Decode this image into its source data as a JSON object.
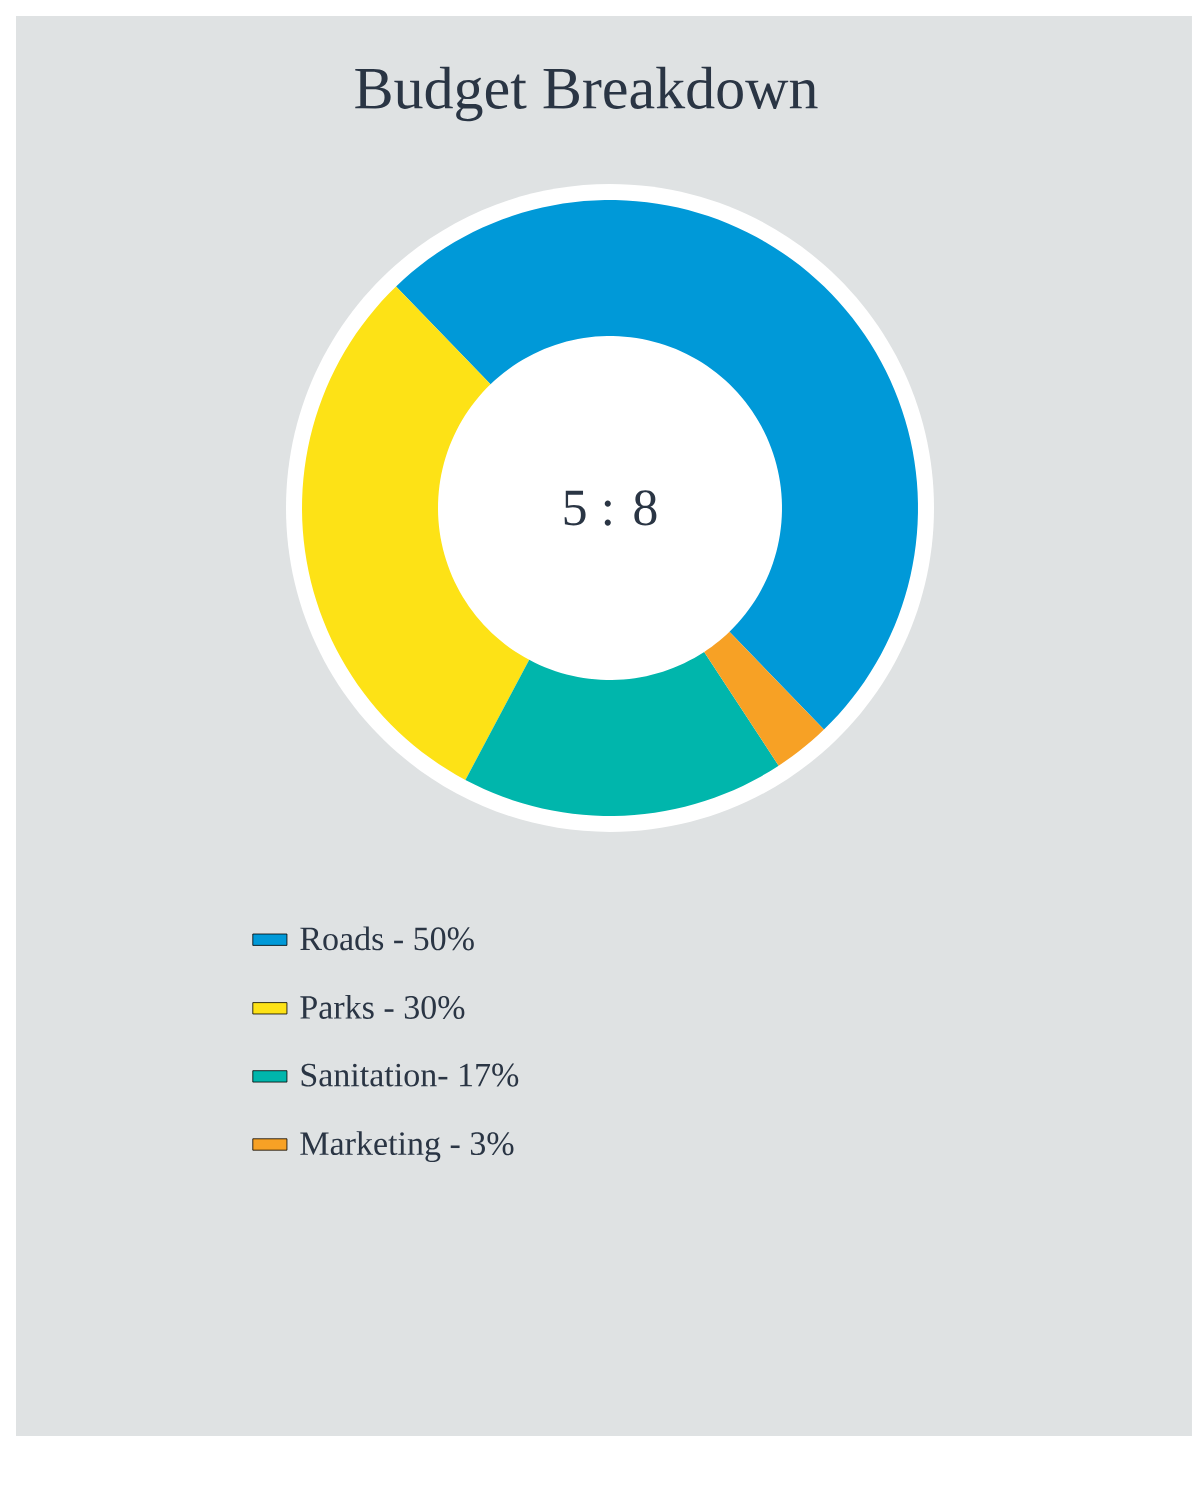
{
  "chart_data": {
    "type": "donut",
    "title": "Budget Breakdown",
    "categories": [
      "Roads - 50%",
      "Parks - 30%",
      "Sanitation- 17%",
      "Marketing - 3%"
    ],
    "values": [
      50,
      30,
      17,
      3
    ],
    "colors": [
      "#0099d8",
      "#fde216",
      "#00b6ac",
      "#f7a125"
    ],
    "annotations": [
      "5 : 8"
    ],
    "legend": "bottom"
  }
}
